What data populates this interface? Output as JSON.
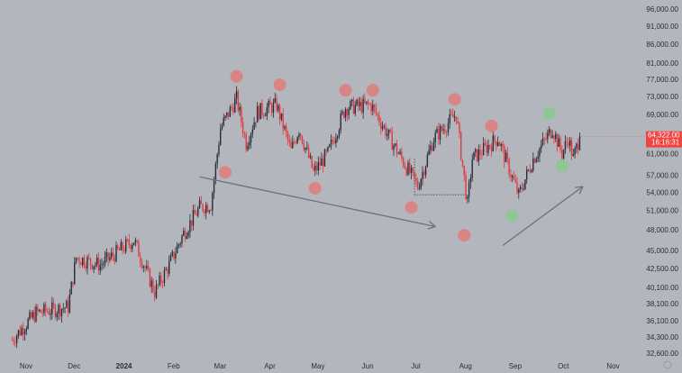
{
  "chart_data": {
    "type": "candlestick",
    "title": "",
    "scale": "log",
    "ylim": [
      32000,
      98000
    ],
    "y_ticks": [
      96000,
      91000,
      86000,
      81000,
      77000,
      73000,
      69000,
      61000,
      57000,
      54000,
      51000,
      48000,
      45000,
      42500,
      40100,
      38100,
      36100,
      34300,
      32600
    ],
    "y_tick_labels": [
      "96,000.00",
      "91,000.00",
      "86,000.00",
      "81,000.00",
      "77,000.00",
      "73,000.00",
      "69,000.00",
      "61,000.00",
      "57,000.00",
      "54,000.00",
      "51,000.00",
      "48,000.00",
      "45,000.00",
      "42,500.00",
      "40,100.00",
      "38,100.00",
      "36,100.00",
      "34,300.00",
      "32,600.00"
    ],
    "x_unit": "days since Nov 1 2023",
    "x_ticks": [
      0,
      30,
      61,
      92,
      121,
      152,
      182,
      213,
      243,
      274,
      305,
      335,
      366
    ],
    "x_tick_labels": [
      "Nov",
      "Dec",
      "2024",
      "Feb",
      "Mar",
      "Apr",
      "May",
      "Jun",
      "Jul",
      "Aug",
      "Sep",
      "Oct",
      "Nov"
    ],
    "bold_x_tick": "2024",
    "price_path": [
      [
        -6,
        34000
      ],
      [
        9,
        37000
      ],
      [
        29,
        37700
      ],
      [
        34,
        44000
      ],
      [
        49,
        43000
      ],
      [
        70,
        46500
      ],
      [
        83,
        39500
      ],
      [
        92,
        43000
      ],
      [
        101,
        47500
      ],
      [
        111,
        51500
      ],
      [
        118,
        52000
      ],
      [
        124,
        66000
      ],
      [
        134,
        72500
      ],
      [
        140,
        63000
      ],
      [
        147,
        69500
      ],
      [
        159,
        71000
      ],
      [
        168,
        61500
      ],
      [
        173,
        66000
      ],
      [
        182,
        57500
      ],
      [
        191,
        61000
      ],
      [
        202,
        70500
      ],
      [
        218,
        71000
      ],
      [
        236,
        60500
      ],
      [
        247,
        55000
      ],
      [
        257,
        64000
      ],
      [
        271,
        69000
      ],
      [
        278,
        52000
      ],
      [
        281,
        60000
      ],
      [
        297,
        64000
      ],
      [
        310,
        53500
      ],
      [
        319,
        60000
      ],
      [
        331,
        66000
      ],
      [
        337,
        61000
      ],
      [
        341,
        64000
      ],
      [
        344,
        60000
      ],
      [
        348,
        64322
      ]
    ],
    "last_price": {
      "price": 64322,
      "label": "64,322.00",
      "countdown": "16:16:31"
    },
    "annotations": {
      "red_markers": [
        [
          127,
          57500
        ],
        [
          134,
          77700
        ],
        [
          161,
          75700
        ],
        [
          183,
          54700
        ],
        [
          202,
          74400
        ],
        [
          219,
          74400
        ],
        [
          243,
          51500
        ],
        [
          270,
          72300
        ],
        [
          276,
          47200
        ],
        [
          293,
          66500
        ]
      ],
      "green_markers": [
        [
          329,
          69200
        ],
        [
          337,
          58700
        ],
        [
          306,
          50200
        ]
      ],
      "arrows": [
        [
          [
            111,
            56700
          ],
          [
            258,
            48500
          ]
        ],
        [
          [
            300,
            45700
          ],
          [
            350,
            55000
          ]
        ]
      ],
      "support_line": [
        [
          245,
          53600
        ],
        [
          276,
          53600
        ]
      ]
    },
    "colors": {
      "up": "#2a2d36",
      "down": "#e0393e",
      "red_marker": "#d98585",
      "green_marker": "#8ec795",
      "background": "#b4b6be",
      "price_label": "#f0443f"
    }
  }
}
